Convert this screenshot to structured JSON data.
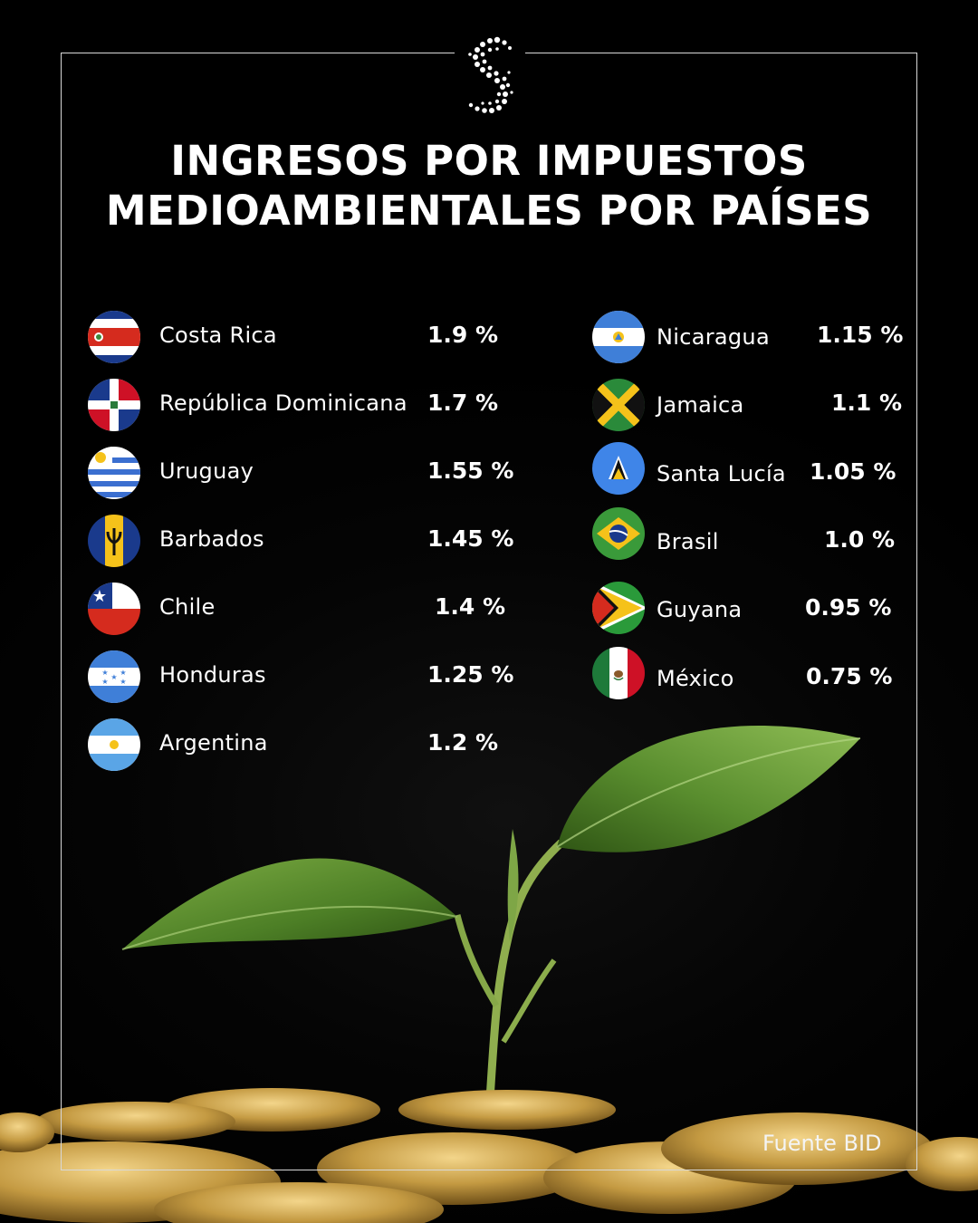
{
  "title_line1": "INGRESOS POR IMPUESTOS",
  "title_line2": "MEDIOAMBIENTALES POR PAÍSES",
  "left_column": [
    {
      "country": "Costa Rica",
      "value": "1.9 %",
      "flag": "costa-rica-flag-icon"
    },
    {
      "country": "República Dominicana",
      "value": "1.7 %",
      "flag": "dominican-republic-flag-icon"
    },
    {
      "country": "Uruguay",
      "value": "1.55 %",
      "flag": "uruguay-flag-icon"
    },
    {
      "country": "Barbados",
      "value": "1.45 %",
      "flag": "barbados-flag-icon"
    },
    {
      "country": "Chile",
      "value": "1.4 %",
      "flag": "chile-flag-icon"
    },
    {
      "country": "Honduras",
      "value": "1.25 %",
      "flag": "honduras-flag-icon"
    },
    {
      "country": "Argentina",
      "value": "1.2 %",
      "flag": "argentina-flag-icon"
    }
  ],
  "right_column": [
    {
      "country": "Nicaragua",
      "value": "1.15 %",
      "flag": "nicaragua-flag-icon"
    },
    {
      "country": "Jamaica",
      "value": "1.1 %",
      "flag": "jamaica-flag-icon"
    },
    {
      "country": "Santa Lucía",
      "value": "1.05 %",
      "flag": "saint-lucia-flag-icon"
    },
    {
      "country": "Brasil",
      "value": "1.0 %",
      "flag": "brazil-flag-icon"
    },
    {
      "country": "Guyana",
      "value": "0.95 %",
      "flag": "guyana-flag-icon"
    },
    {
      "country": "México",
      "value": "0.75 %",
      "flag": "mexico-flag-icon"
    }
  ],
  "source": "Fuente BID",
  "logo": "dotted-s-logo",
  "colors": {
    "background": "#000000",
    "text": "#ffffff",
    "frame": "#d8d8d8",
    "leaf": "#5a8a2c",
    "coin": "#c9a24a"
  }
}
